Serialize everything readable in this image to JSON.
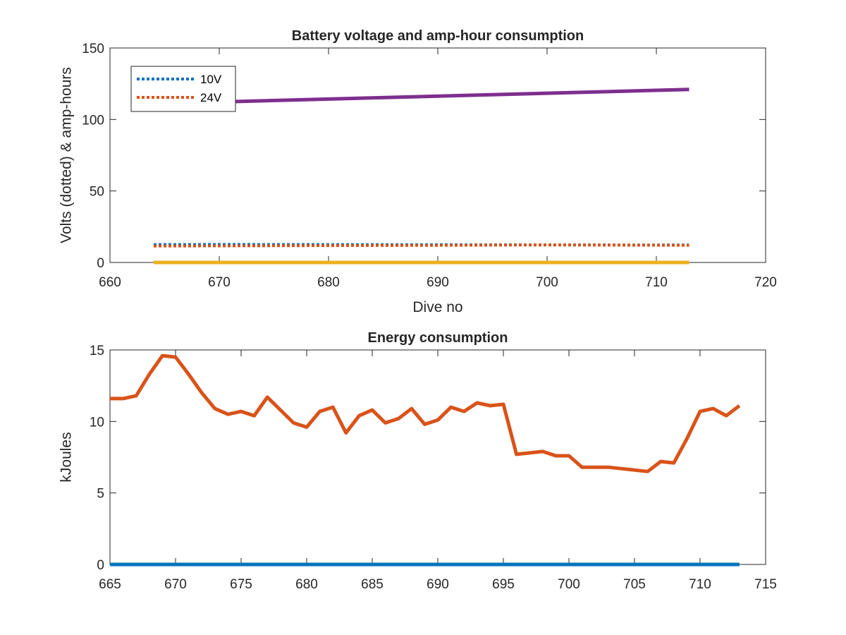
{
  "chart_data": [
    {
      "type": "line",
      "title": "Battery voltage and amp-hour consumption",
      "xlabel": "Dive no",
      "ylabel": "Volts (dotted) & amp-hours",
      "xlim": [
        660,
        720
      ],
      "ylim": [
        0,
        150
      ],
      "xticks": [
        660,
        670,
        680,
        690,
        700,
        710,
        720
      ],
      "yticks": [
        0,
        50,
        100,
        150
      ],
      "grid": false,
      "legend": {
        "placement": "top-left",
        "entries": [
          "10V",
          "24V"
        ]
      },
      "series": [
        {
          "name": "10V",
          "style": "dotted",
          "color": "#0072BD",
          "x": [
            664,
            670,
            680,
            690,
            700,
            713
          ],
          "y": [
            12.5,
            12.6,
            12.5,
            12.4,
            12.3,
            12.2
          ]
        },
        {
          "name": "24V",
          "style": "dotted",
          "color": "#D95319",
          "x": [
            664,
            670,
            680,
            690,
            700,
            713
          ],
          "y": [
            11.5,
            11.6,
            11.8,
            12.0,
            12.3,
            12.0
          ]
        },
        {
          "style": "solid",
          "color": "#7E2F8E",
          "x": [
            664,
            713
          ],
          "y": [
            111,
            121
          ]
        },
        {
          "style": "solid",
          "color": "#EDB120",
          "x": [
            664,
            713
          ],
          "y": [
            0,
            0
          ]
        }
      ]
    },
    {
      "type": "line",
      "title": "Energy consumption",
      "xlabel": "",
      "ylabel": "kJoules",
      "xlim": [
        665,
        715
      ],
      "ylim": [
        0,
        15
      ],
      "xticks": [
        665,
        670,
        675,
        680,
        685,
        690,
        695,
        700,
        705,
        710,
        715
      ],
      "yticks": [
        0,
        5,
        10,
        15
      ],
      "grid": false,
      "series": [
        {
          "style": "solid",
          "color": "#D95319",
          "x": [
            665,
            666,
            667,
            668,
            669,
            670,
            671,
            672,
            673,
            674,
            675,
            676,
            677,
            678,
            679,
            680,
            681,
            682,
            683,
            684,
            685,
            686,
            687,
            688,
            689,
            690,
            691,
            692,
            693,
            694,
            695,
            696,
            697,
            698,
            699,
            700,
            701,
            702,
            703,
            704,
            705,
            706,
            707,
            708,
            709,
            710,
            711,
            712,
            713
          ],
          "y": [
            11.6,
            11.6,
            11.8,
            13.3,
            14.6,
            14.5,
            13.3,
            12.0,
            10.9,
            10.5,
            10.7,
            10.4,
            11.7,
            10.8,
            9.9,
            9.6,
            10.7,
            11.0,
            9.2,
            10.4,
            10.8,
            9.9,
            10.2,
            10.9,
            9.8,
            10.1,
            11.0,
            10.7,
            11.3,
            11.1,
            11.2,
            7.7,
            7.8,
            7.9,
            7.6,
            7.6,
            6.8,
            6.8,
            6.8,
            6.7,
            6.6,
            6.5,
            7.2,
            7.1,
            8.8,
            10.7,
            10.9,
            10.4,
            11.1
          ]
        },
        {
          "style": "solid",
          "color": "#0072BD",
          "x": [
            665,
            713
          ],
          "y": [
            0,
            0
          ]
        }
      ]
    }
  ]
}
